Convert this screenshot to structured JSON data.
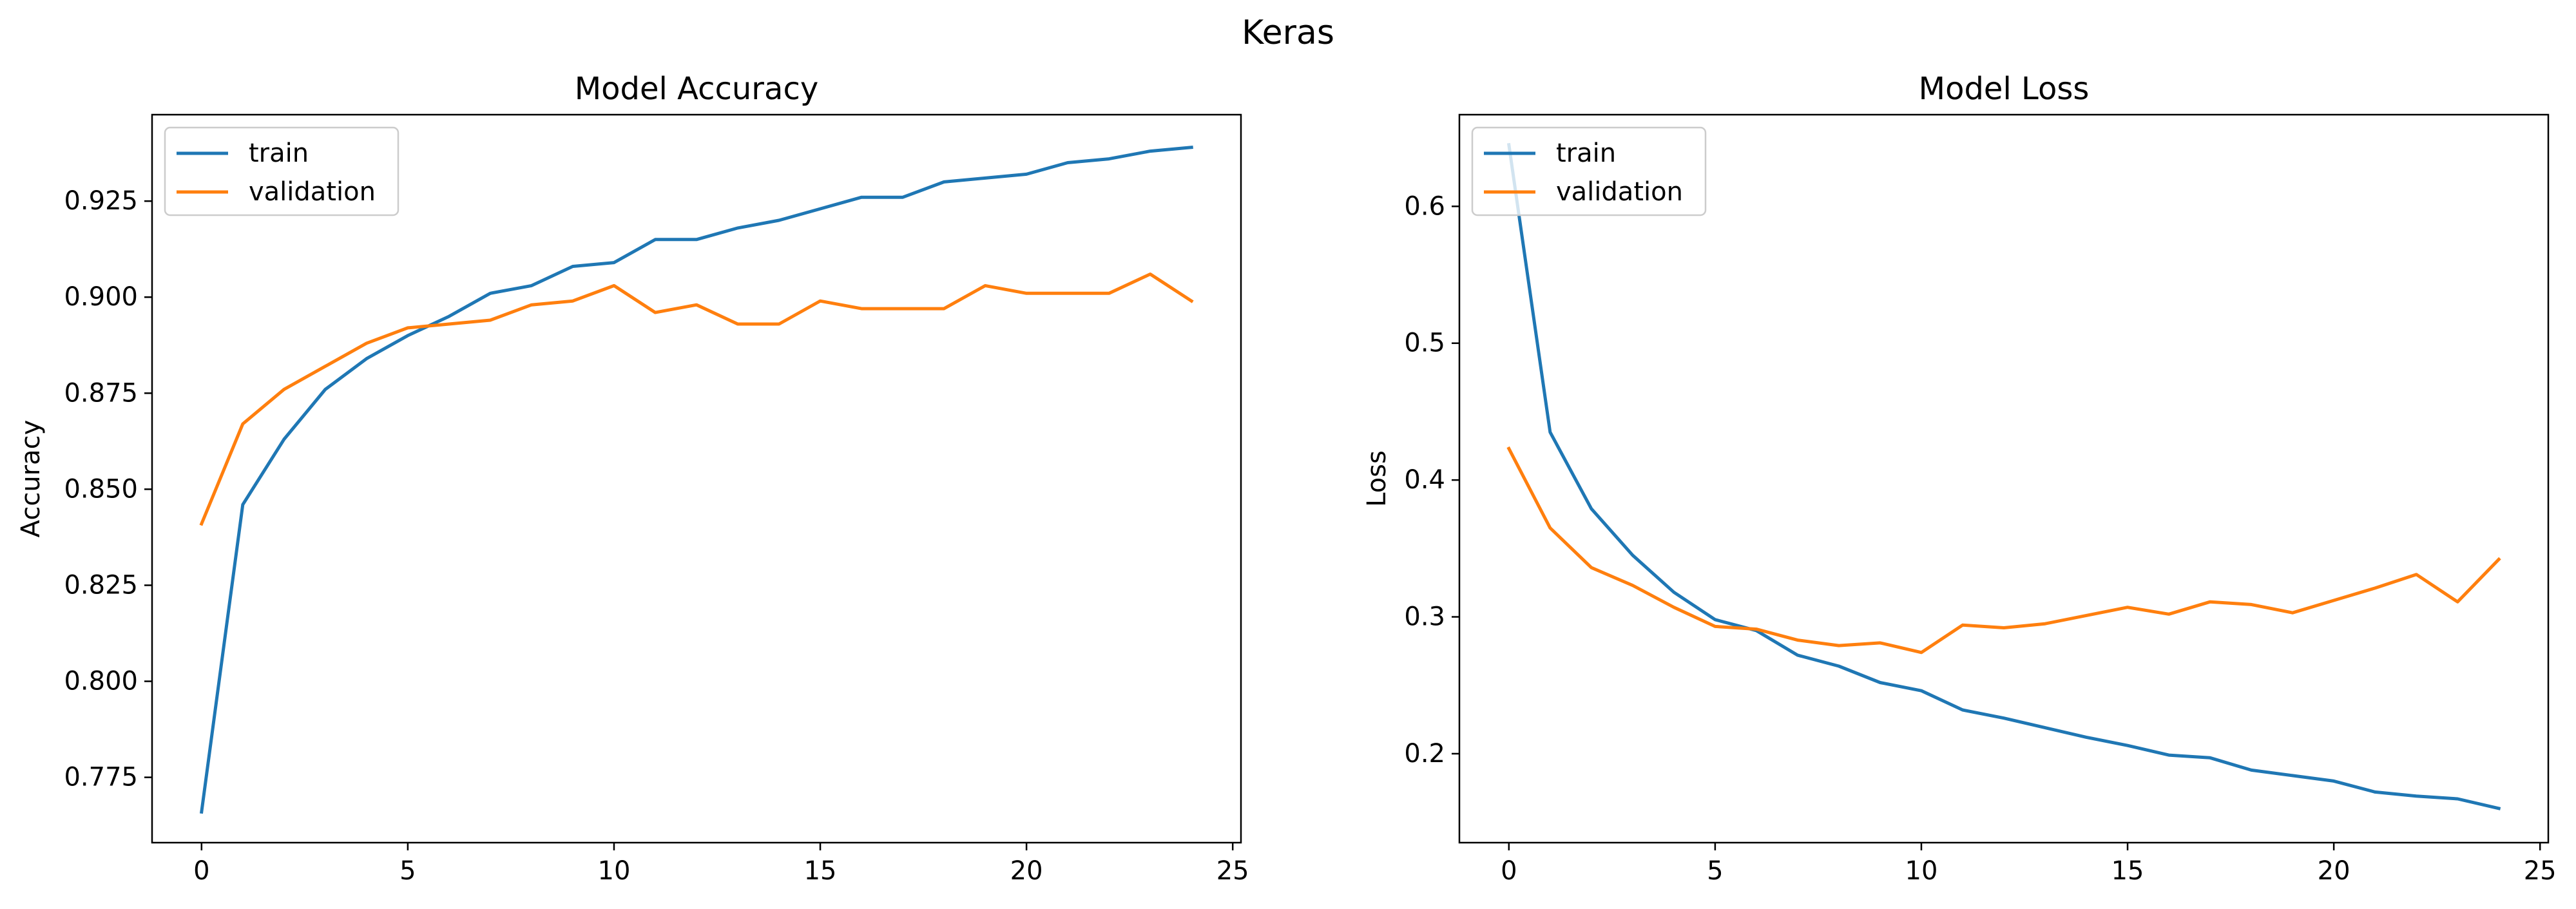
{
  "suptitle": "Keras",
  "colors": {
    "train": "#1f77b4",
    "validation": "#ff7f0e"
  },
  "chart_data": [
    {
      "type": "line",
      "title": "Model Accuracy",
      "xlabel": "",
      "ylabel": "Accuracy",
      "xlim": [
        -1.2,
        25.2
      ],
      "ylim": [
        0.758,
        0.9475
      ],
      "xticks": [
        0,
        5,
        10,
        15,
        20,
        25
      ],
      "yticks": [
        0.775,
        0.8,
        0.825,
        0.85,
        0.875,
        0.9,
        0.925
      ],
      "yticklabels": [
        "0.775",
        "0.800",
        "0.825",
        "0.850",
        "0.875",
        "0.900",
        "0.925"
      ],
      "grid": false,
      "legend": "upper left",
      "x": [
        0,
        1,
        2,
        3,
        4,
        5,
        6,
        7,
        8,
        9,
        10,
        11,
        12,
        13,
        14,
        15,
        16,
        17,
        18,
        19,
        20,
        21,
        22,
        23,
        24
      ],
      "series": [
        {
          "name": "train",
          "color": "#1f77b4",
          "values": [
            0.766,
            0.846,
            0.863,
            0.876,
            0.884,
            0.89,
            0.895,
            0.901,
            0.903,
            0.908,
            0.909,
            0.915,
            0.915,
            0.918,
            0.92,
            0.923,
            0.926,
            0.926,
            0.93,
            0.931,
            0.932,
            0.935,
            0.936,
            0.938,
            0.939
          ]
        },
        {
          "name": "validation",
          "color": "#ff7f0e",
          "values": [
            0.841,
            0.867,
            0.876,
            0.882,
            0.888,
            0.892,
            0.893,
            0.894,
            0.898,
            0.899,
            0.903,
            0.896,
            0.898,
            0.893,
            0.893,
            0.899,
            0.897,
            0.897,
            0.897,
            0.903,
            0.901,
            0.901,
            0.901,
            0.906,
            0.899
          ]
        }
      ]
    },
    {
      "type": "line",
      "title": "Model Loss",
      "xlabel": "",
      "ylabel": "Loss",
      "xlim": [
        -1.2,
        25.2
      ],
      "ylim": [
        0.135,
        0.667
      ],
      "xticks": [
        0,
        5,
        10,
        15,
        20,
        25
      ],
      "yticks": [
        0.2,
        0.3,
        0.4,
        0.5,
        0.6
      ],
      "yticklabels": [
        "0.2",
        "0.3",
        "0.4",
        "0.5",
        "0.6"
      ],
      "grid": false,
      "legend": "upper left",
      "x": [
        0,
        1,
        2,
        3,
        4,
        5,
        6,
        7,
        8,
        9,
        10,
        11,
        12,
        13,
        14,
        15,
        16,
        17,
        18,
        19,
        20,
        21,
        22,
        23,
        24
      ],
      "series": [
        {
          "name": "train",
          "color": "#1f77b4",
          "values": [
            0.645,
            0.435,
            0.379,
            0.345,
            0.318,
            0.298,
            0.29,
            0.272,
            0.264,
            0.252,
            0.246,
            0.232,
            0.226,
            0.219,
            0.212,
            0.206,
            0.199,
            0.197,
            0.188,
            0.184,
            0.18,
            0.172,
            0.169,
            0.167,
            0.16
          ]
        },
        {
          "name": "validation",
          "color": "#ff7f0e",
          "values": [
            0.423,
            0.365,
            0.336,
            0.323,
            0.307,
            0.293,
            0.291,
            0.283,
            0.279,
            0.281,
            0.274,
            0.294,
            0.292,
            0.295,
            0.301,
            0.307,
            0.302,
            0.311,
            0.309,
            0.303,
            0.312,
            0.321,
            0.331,
            0.311,
            0.342
          ]
        }
      ]
    }
  ]
}
